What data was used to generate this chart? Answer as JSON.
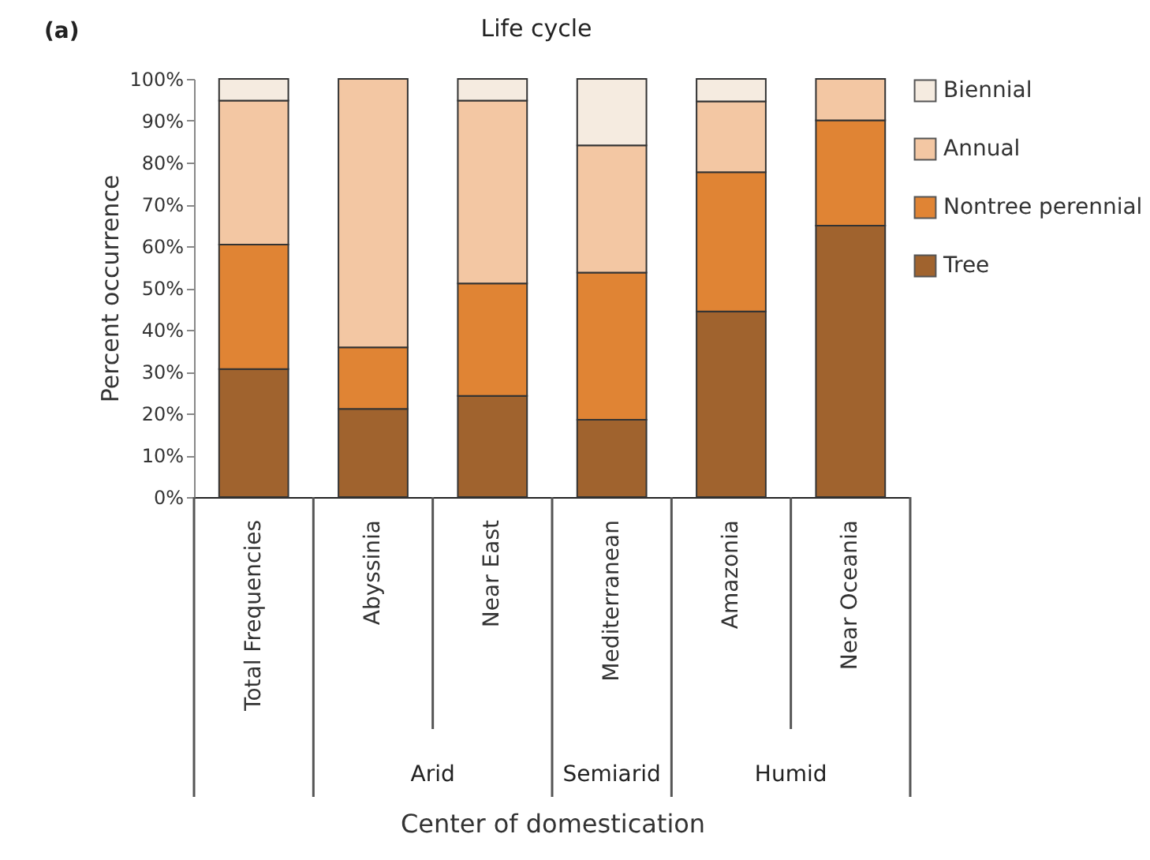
{
  "chart_data": {
    "type": "bar",
    "stacked": true,
    "title": "Life cycle",
    "xlabel": "Center of domestication",
    "ylabel": "Percent occurrence",
    "categories": [
      "Total Frequencies",
      "Abyssinia",
      "Near East",
      "Mediterranean",
      "Amazonia",
      "Near Oceania"
    ],
    "series": [
      {
        "name": "Tree",
        "color": "#a0632e",
        "values": [
          30.6,
          21.1,
          24.2,
          18.5,
          44.4,
          64.9
        ]
      },
      {
        "name": "Nontree perennial",
        "color": "#e08434",
        "values": [
          29.8,
          14.7,
          26.9,
          35.2,
          33.3,
          25.2
        ]
      },
      {
        "name": "Annual",
        "color": "#f3c7a3",
        "values": [
          34.4,
          64.2,
          43.7,
          30.4,
          16.9,
          9.9
        ]
      },
      {
        "name": "Biennial",
        "color": "#f5ebe0",
        "values": [
          5.2,
          null,
          5.2,
          15.9,
          5.4,
          null
        ]
      }
    ],
    "ylim": [
      0,
      100
    ],
    "yticks": [
      {
        "value": 0,
        "label": "0%"
      },
      {
        "value": 10,
        "label": "10%"
      },
      {
        "value": 20,
        "label": "20%"
      },
      {
        "value": 30,
        "label": "30%"
      },
      {
        "value": 40,
        "label": "40%"
      },
      {
        "value": 50,
        "label": "50%"
      },
      {
        "value": 60,
        "label": "60%"
      },
      {
        "value": 70,
        "label": "70%"
      },
      {
        "value": 80,
        "label": "80%"
      },
      {
        "value": 90,
        "label": "90%"
      },
      {
        "value": 100,
        "label": "100%"
      }
    ],
    "grid": false,
    "legend": "right",
    "annotations": [
      "(a)",
      "Arid",
      "Semiarid",
      "Humid"
    ]
  }
}
